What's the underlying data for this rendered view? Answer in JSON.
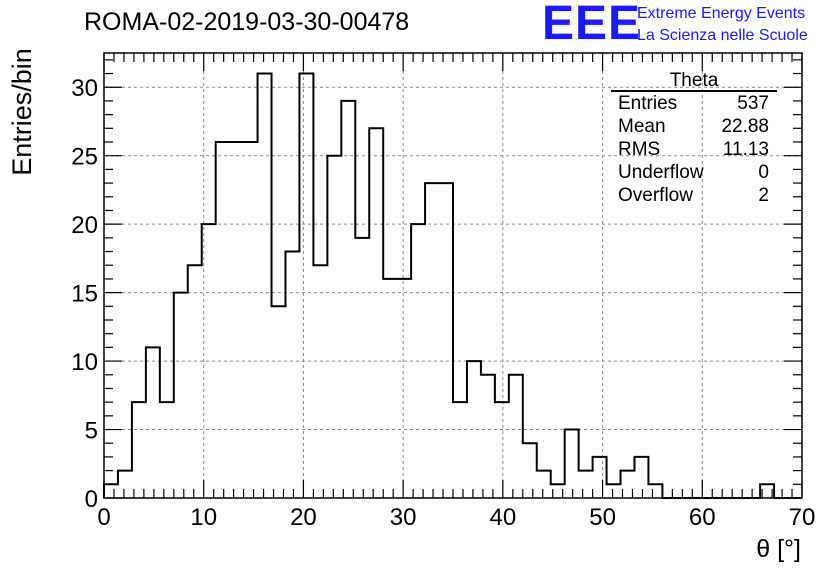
{
  "header": {
    "title": "ROMA-02-2019-03-30-00478",
    "logo": "EEE",
    "logo_line1": "Extreme Energy Events",
    "logo_line2": "La Scienza nelle Scuole"
  },
  "stats_box": {
    "name": "Theta",
    "rows": [
      {
        "label": "Entries",
        "value": "537"
      },
      {
        "label": "Mean",
        "value": "22.88"
      },
      {
        "label": "RMS",
        "value": "11.13"
      },
      {
        "label": "Underflow",
        "value": "0"
      },
      {
        "label": "Overflow",
        "value": "2"
      }
    ]
  },
  "colors": {
    "logo": "#1a1aff",
    "grid": "#888888",
    "line": "#000000"
  },
  "chart_data": {
    "type": "histogram",
    "xlabel": "θ [°]",
    "ylabel": "Entries/bin",
    "xlim": [
      0,
      70
    ],
    "ylim": [
      0,
      32.5
    ],
    "xticks": [
      0,
      10,
      20,
      30,
      40,
      50,
      60,
      70
    ],
    "yticks": [
      0,
      5,
      10,
      15,
      20,
      25,
      30
    ],
    "grid": true,
    "bin_width": 1.4,
    "bin_edges_start": 0,
    "values": [
      1,
      2,
      7,
      11,
      7,
      15,
      17,
      20,
      26,
      26,
      26,
      31,
      14,
      18,
      31,
      17,
      25,
      29,
      19,
      27,
      16,
      16,
      20,
      23,
      23,
      7,
      10,
      9,
      7,
      9,
      4,
      2,
      1,
      5,
      2,
      3,
      1,
      2,
      3,
      1,
      0,
      0,
      0,
      0,
      0,
      0,
      0,
      1,
      0,
      0
    ]
  }
}
